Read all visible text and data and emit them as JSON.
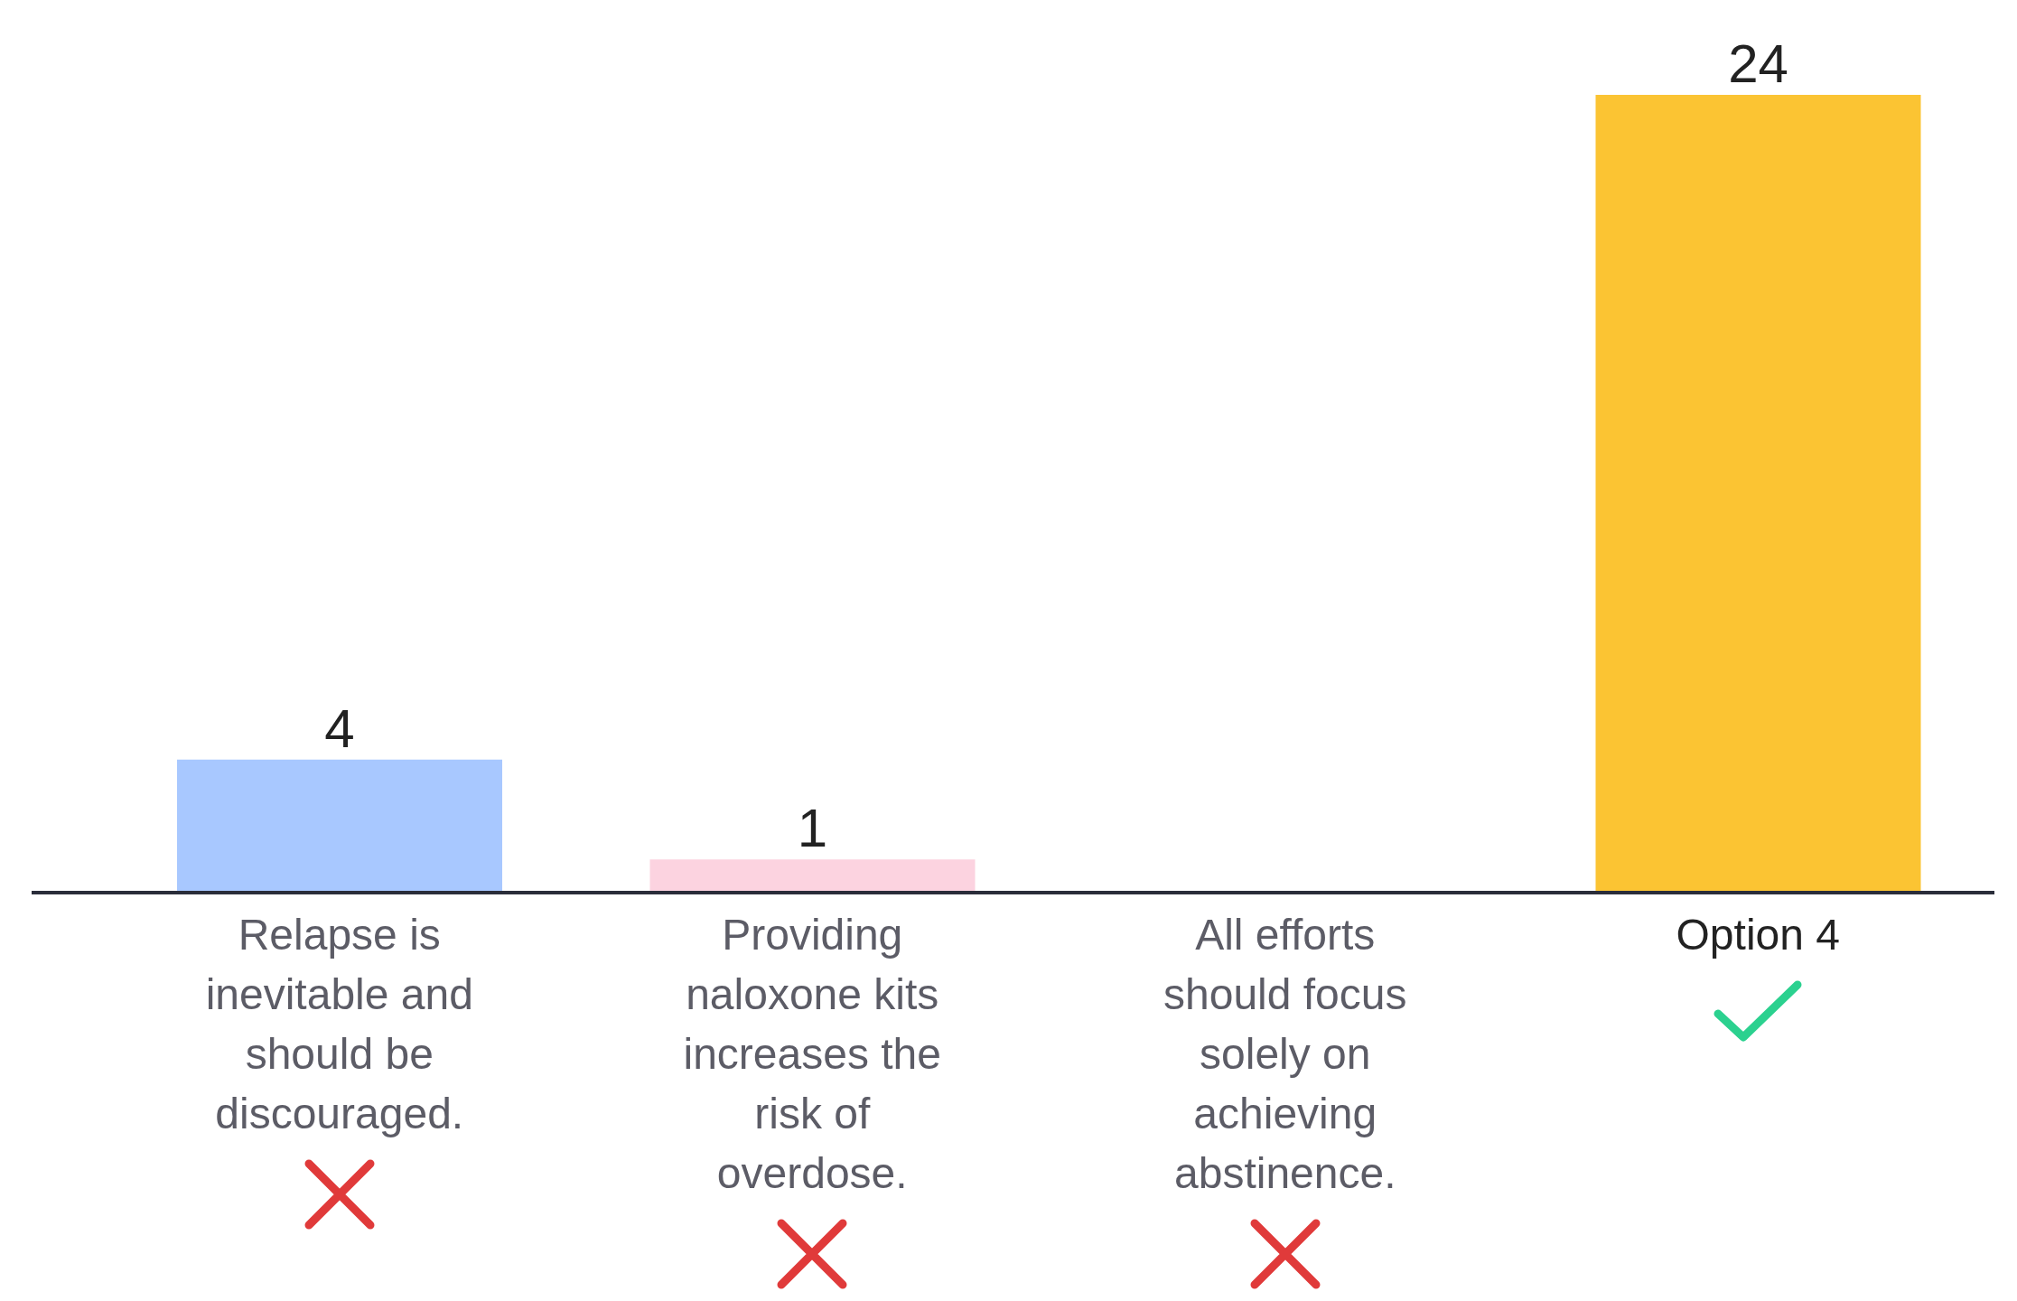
{
  "chart_data": {
    "type": "bar",
    "categories": [
      "Relapse is inevitable and should be discouraged.",
      "Providing naloxone kits increases the risk of overdose.",
      "All efforts should focus solely on achieving abstinence.",
      "Option 4"
    ],
    "values": [
      4,
      1,
      0,
      24
    ],
    "colors": [
      "#a8c8ff",
      "#fcd3e0",
      null,
      "#fbc433"
    ],
    "value_labels": [
      "4",
      "1",
      null,
      "24"
    ],
    "grid": false,
    "legend": false
  }
}
